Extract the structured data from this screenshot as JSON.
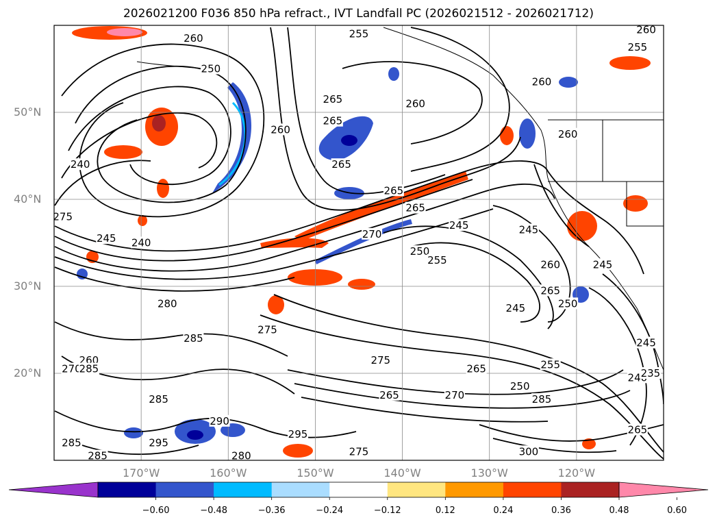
{
  "title": "2026021200 F036 850 hPa refract., IVT Landfall PC (2026021512 - 2026021712)",
  "map": {
    "projection": "lat-lon",
    "extent": {
      "lon_west": -180,
      "lon_east": -110,
      "lat_south": 10,
      "lat_north": 60
    },
    "lat_ticks": [
      {
        "label": "50°N",
        "lat": 50
      },
      {
        "label": "40°N",
        "lat": 40
      },
      {
        "label": "30°N",
        "lat": 30
      },
      {
        "label": "20°N",
        "lat": 20
      }
    ],
    "lon_ticks": [
      {
        "label": "170°W",
        "lon": -170
      },
      {
        "label": "160°W",
        "lon": -160
      },
      {
        "label": "150°W",
        "lon": -150
      },
      {
        "label": "140°W",
        "lon": -140
      },
      {
        "label": "130°W",
        "lon": -130
      },
      {
        "label": "120°W",
        "lon": -120
      }
    ],
    "grid": true,
    "contour_labels": [
      {
        "text": "255",
        "lon": -145,
        "lat": 59
      },
      {
        "text": "260",
        "lon": -112,
        "lat": 59.5
      },
      {
        "text": "255",
        "lon": -113,
        "lat": 57.5
      },
      {
        "text": "260",
        "lon": -164,
        "lat": 58.5
      },
      {
        "text": "250",
        "lon": -162,
        "lat": 55
      },
      {
        "text": "265",
        "lon": -148,
        "lat": 51.5
      },
      {
        "text": "265",
        "lon": -148,
        "lat": 49
      },
      {
        "text": "260",
        "lon": -138.5,
        "lat": 51
      },
      {
        "text": "260",
        "lon": -124,
        "lat": 53.5
      },
      {
        "text": "260",
        "lon": -154,
        "lat": 48
      },
      {
        "text": "265",
        "lon": -147,
        "lat": 44
      },
      {
        "text": "260",
        "lon": -121,
        "lat": 47.5
      },
      {
        "text": "240",
        "lon": -177,
        "lat": 44
      },
      {
        "text": "265",
        "lon": -141,
        "lat": 41
      },
      {
        "text": "265",
        "lon": -138.5,
        "lat": 39
      },
      {
        "text": "245",
        "lon": -133.5,
        "lat": 37
      },
      {
        "text": "245",
        "lon": -125.5,
        "lat": 36.5
      },
      {
        "text": "275",
        "lon": -179,
        "lat": 38
      },
      {
        "text": "245",
        "lon": -174,
        "lat": 35.5
      },
      {
        "text": "240",
        "lon": -170,
        "lat": 35
      },
      {
        "text": "270",
        "lon": -143.5,
        "lat": 36
      },
      {
        "text": "250",
        "lon": -138,
        "lat": 34
      },
      {
        "text": "255",
        "lon": -136,
        "lat": 33
      },
      {
        "text": "260",
        "lon": -123,
        "lat": 32.5
      },
      {
        "text": "245",
        "lon": -117,
        "lat": 32.5
      },
      {
        "text": "265",
        "lon": -123,
        "lat": 29.5
      },
      {
        "text": "250",
        "lon": -121,
        "lat": 28
      },
      {
        "text": "245",
        "lon": -127,
        "lat": 27.5
      },
      {
        "text": "280",
        "lon": -167,
        "lat": 28
      },
      {
        "text": "275",
        "lon": -155.5,
        "lat": 25
      },
      {
        "text": "285",
        "lon": -164,
        "lat": 24
      },
      {
        "text": "275",
        "lon": -142.5,
        "lat": 21.5
      },
      {
        "text": "260",
        "lon": -176,
        "lat": 21.5
      },
      {
        "text": "270",
        "lon": -178,
        "lat": 20.5
      },
      {
        "text": "285",
        "lon": -176,
        "lat": 20.5
      },
      {
        "text": "285",
        "lon": -168,
        "lat": 17
      },
      {
        "text": "290",
        "lon": -161,
        "lat": 14.5
      },
      {
        "text": "295",
        "lon": -152,
        "lat": 13
      },
      {
        "text": "295",
        "lon": -168,
        "lat": 12
      },
      {
        "text": "285",
        "lon": -178,
        "lat": 12
      },
      {
        "text": "285",
        "lon": -175,
        "lat": 10.5
      },
      {
        "text": "280",
        "lon": -158.5,
        "lat": 10.5
      },
      {
        "text": "275",
        "lon": -145,
        "lat": 11
      },
      {
        "text": "265",
        "lon": -141.5,
        "lat": 17.5
      },
      {
        "text": "270",
        "lon": -134,
        "lat": 17.5
      },
      {
        "text": "265",
        "lon": -131.5,
        "lat": 20.5
      },
      {
        "text": "250",
        "lon": -126.5,
        "lat": 18.5
      },
      {
        "text": "255",
        "lon": -123,
        "lat": 21
      },
      {
        "text": "285",
        "lon": -124,
        "lat": 17
      },
      {
        "text": "240",
        "lon": -113,
        "lat": 19.5
      },
      {
        "text": "235",
        "lon": -111.5,
        "lat": 20
      },
      {
        "text": "245",
        "lon": -112,
        "lat": 23.5
      },
      {
        "text": "300",
        "lon": -125.5,
        "lat": 11
      },
      {
        "text": "265",
        "lon": -113,
        "lat": 13.5
      }
    ]
  },
  "colorbar": {
    "extend": "both",
    "colors": [
      "#9933cc",
      "#000099",
      "#3355cc",
      "#00bbff",
      "#aaddff",
      "#ffffff",
      "#ffe680",
      "#ff9900",
      "#ff4400",
      "#aa2222",
      "#ff88aa"
    ],
    "ticks": [
      "−0.60",
      "−0.48",
      "−0.36",
      "−0.24",
      "−0.12",
      "0.12",
      "0.24",
      "0.36",
      "0.48",
      "0.60"
    ]
  }
}
